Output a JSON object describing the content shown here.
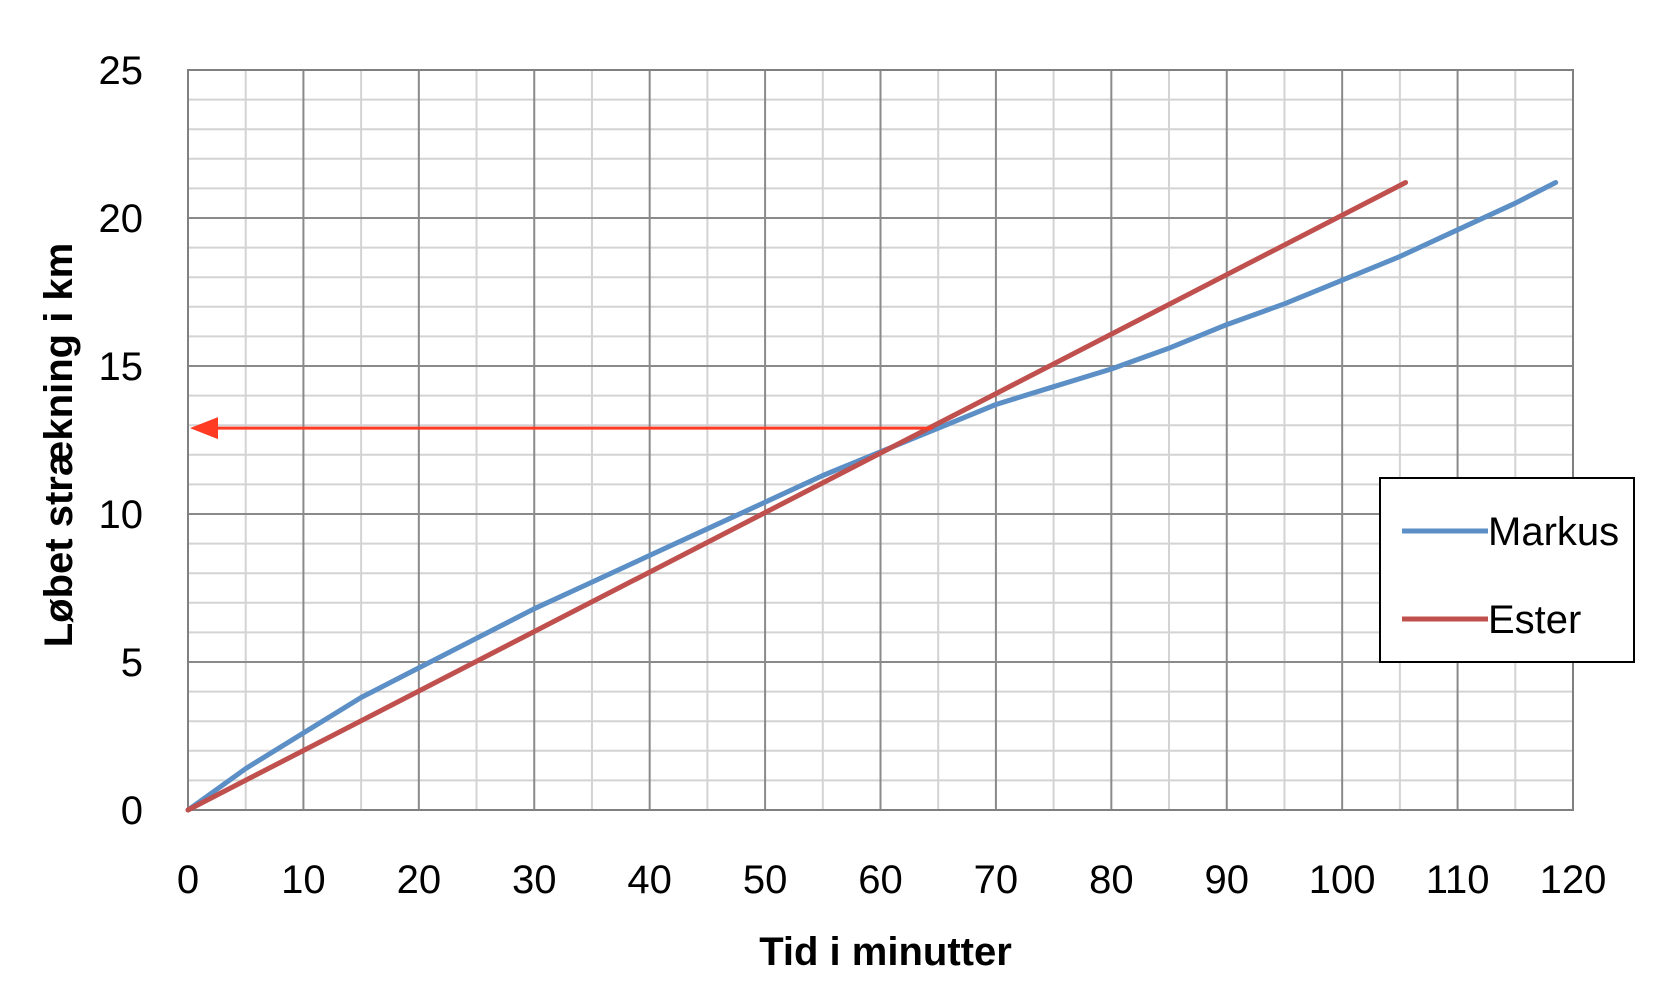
{
  "chart_data": {
    "type": "line",
    "xlabel": "Tid i minutter",
    "ylabel": "Løbet strækning i km",
    "xlim": [
      0,
      120
    ],
    "ylim": [
      0,
      25
    ],
    "x_ticks": [
      0,
      10,
      20,
      30,
      40,
      50,
      60,
      70,
      80,
      90,
      100,
      110,
      120
    ],
    "y_ticks": [
      0,
      5,
      10,
      15,
      20,
      25
    ],
    "grid": {
      "major": true,
      "minor": true,
      "x_minor_step": 5,
      "y_minor_step": 1
    },
    "legend_position": "right",
    "series": [
      {
        "name": "Markus",
        "color": "#5B8FC6",
        "points": [
          [
            0,
            0
          ],
          [
            5,
            1.4
          ],
          [
            10,
            2.6
          ],
          [
            15,
            3.8
          ],
          [
            20,
            4.8
          ],
          [
            25,
            5.8
          ],
          [
            30,
            6.8
          ],
          [
            35,
            7.7
          ],
          [
            40,
            8.6
          ],
          [
            45,
            9.5
          ],
          [
            50,
            10.4
          ],
          [
            55,
            11.3
          ],
          [
            60,
            12.1
          ],
          [
            65,
            12.9
          ],
          [
            70,
            13.7
          ],
          [
            75,
            14.3
          ],
          [
            80,
            14.9
          ],
          [
            85,
            15.6
          ],
          [
            90,
            16.4
          ],
          [
            95,
            17.1
          ],
          [
            100,
            17.9
          ],
          [
            105,
            18.7
          ],
          [
            110,
            19.6
          ],
          [
            115,
            20.5
          ],
          [
            118.5,
            21.2
          ]
        ]
      },
      {
        "name": "Ester",
        "color": "#C0504D",
        "points": [
          [
            0,
            0
          ],
          [
            105.5,
            21.2
          ]
        ]
      }
    ],
    "annotations": [
      {
        "type": "arrow",
        "from": [
          64.5,
          12.9
        ],
        "to": [
          0,
          12.9
        ],
        "color": "#FF3B24"
      }
    ]
  }
}
